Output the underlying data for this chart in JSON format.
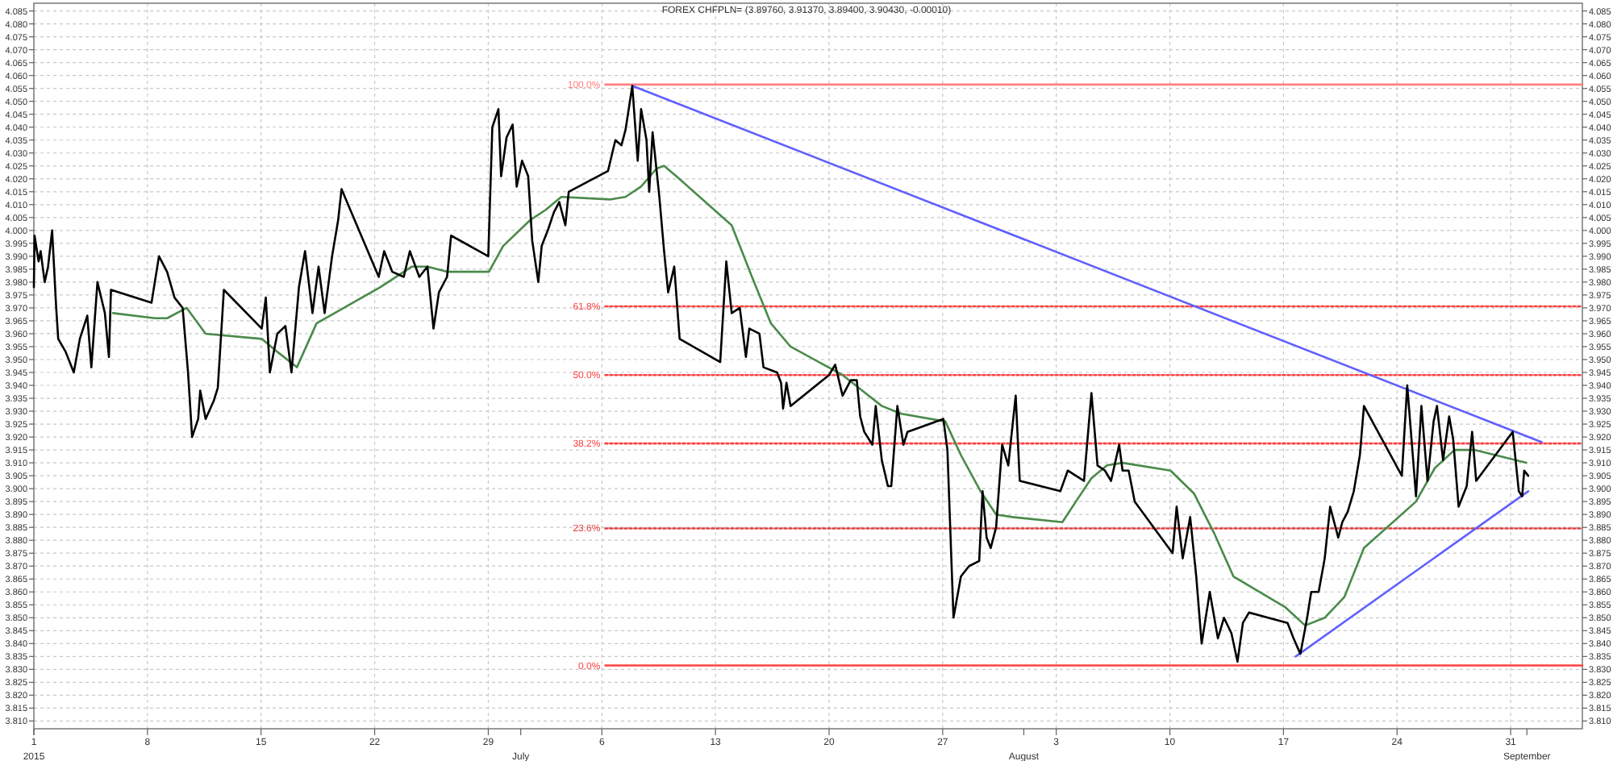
{
  "chart_data": {
    "type": "line",
    "title": "FOREX CHFPLN= (3.89760, 3.91370, 3.89400, 3.90430, -0.00010)",
    "xlim": [
      "2015-06-01",
      "2015-09-04T10:00"
    ],
    "xticks": [
      {
        "value": "2015-06-01",
        "label": "1"
      },
      {
        "value": "2015-06-08",
        "label": "8"
      },
      {
        "value": "2015-06-15",
        "label": "15"
      },
      {
        "value": "2015-06-22",
        "label": "22"
      },
      {
        "value": "2015-06-29",
        "label": "29"
      },
      {
        "value": "2015-07-06",
        "label": "6"
      },
      {
        "value": "2015-07-13",
        "label": "13"
      },
      {
        "value": "2015-07-20",
        "label": "20"
      },
      {
        "value": "2015-07-27",
        "label": "27"
      },
      {
        "value": "2015-08-03",
        "label": "3"
      },
      {
        "value": "2015-08-10",
        "label": "10"
      },
      {
        "value": "2015-08-17",
        "label": "17"
      },
      {
        "value": "2015-08-24",
        "label": "24"
      },
      {
        "value": "2015-08-31",
        "label": "31"
      }
    ],
    "x2lim": [
      "2015-06-01",
      "2015-09-04T10:00"
    ],
    "x2ticks": [
      {
        "value": "2015-06-01",
        "label": "2015"
      },
      {
        "value": "2015-07-01",
        "label": "July"
      },
      {
        "value": "2015-08-01",
        "label": "August"
      },
      {
        "value": "2015-09-01",
        "label": "September"
      }
    ],
    "ylim": [
      3.807,
      4.088
    ],
    "yticks": [
      {
        "value": 3.81,
        "label": "3.810"
      },
      3.815,
      {
        "value": 3.82,
        "label": "3.820"
      },
      3.825,
      {
        "value": 3.83,
        "label": "3.830"
      },
      3.835,
      {
        "value": 3.84,
        "label": "3.840"
      },
      3.845,
      {
        "value": 3.85,
        "label": "3.850"
      },
      3.855,
      {
        "value": 3.86,
        "label": "3.860"
      },
      3.865,
      {
        "value": 3.87,
        "label": "3.870"
      },
      3.875,
      {
        "value": 3.88,
        "label": "3.880"
      },
      3.885,
      {
        "value": 3.89,
        "label": "3.890"
      },
      3.895,
      {
        "value": 3.9,
        "label": "3.900"
      },
      3.905,
      {
        "value": 3.91,
        "label": "3.910"
      },
      3.915,
      {
        "value": 3.92,
        "label": "3.920"
      },
      3.925,
      {
        "value": 3.93,
        "label": "3.930"
      },
      3.935,
      {
        "value": 3.94,
        "label": "3.940"
      },
      3.945,
      {
        "value": 3.95,
        "label": "3.950"
      },
      3.955,
      {
        "value": 3.96,
        "label": "3.960"
      },
      3.965,
      {
        "value": 3.97,
        "label": "3.970"
      },
      3.975,
      {
        "value": 3.98,
        "label": "3.980"
      },
      3.985,
      {
        "value": 3.99,
        "label": "3.990"
      },
      3.995,
      {
        "value": 4,
        "label": "4.000"
      },
      4.005,
      {
        "value": 4.01,
        "label": "4.010"
      },
      4.015,
      {
        "value": 4.02,
        "label": "4.020"
      },
      4.025,
      {
        "value": 4.03,
        "label": "4.030"
      },
      4.035,
      {
        "value": 4.04,
        "label": "4.040"
      },
      4.045,
      {
        "value": 4.05,
        "label": "4.050"
      },
      4.055,
      {
        "value": 4.06,
        "label": "4.060"
      },
      4.065,
      {
        "value": 4.07,
        "label": "4.070"
      },
      4.075,
      {
        "value": 4.08,
        "label": "4.080"
      },
      4.085
    ],
    "y2lim": [
      3.807,
      4.088
    ],
    "y2ticks": [
      {
        "value": 3.81,
        "label": "3.810"
      },
      3.815,
      {
        "value": 3.82,
        "label": "3.820"
      },
      3.825,
      {
        "value": 3.83,
        "label": "3.830"
      },
      3.835,
      {
        "value": 3.84,
        "label": "3.840"
      },
      3.845,
      {
        "value": 3.85,
        "label": "3.850"
      },
      3.855,
      {
        "value": 3.86,
        "label": "3.860"
      },
      3.865,
      {
        "value": 3.87,
        "label": "3.870"
      },
      3.875,
      {
        "value": 3.88,
        "label": "3.880"
      },
      3.885,
      {
        "value": 3.89,
        "label": "3.890"
      },
      3.895,
      {
        "value": 3.9,
        "label": "3.900"
      },
      3.905,
      {
        "value": 3.91,
        "label": "3.910"
      },
      3.915,
      {
        "value": 3.92,
        "label": "3.920"
      },
      3.925,
      {
        "value": 3.93,
        "label": "3.930"
      },
      3.935,
      {
        "value": 3.94,
        "label": "3.940"
      },
      3.945,
      {
        "value": 3.95,
        "label": "3.950"
      },
      3.955,
      {
        "value": 3.96,
        "label": "3.960"
      },
      3.965,
      {
        "value": 3.97,
        "label": "3.970"
      },
      3.975,
      {
        "value": 3.98,
        "label": "3.980"
      },
      3.985,
      {
        "value": 3.99,
        "label": "3.990"
      },
      3.995,
      {
        "value": 4,
        "label": "4.000"
      },
      4.005,
      {
        "value": 4.01,
        "label": "4.010"
      },
      4.015,
      {
        "value": 4.02,
        "label": "4.020"
      },
      4.025,
      {
        "value": 4.03,
        "label": "4.030"
      },
      4.035,
      {
        "value": 4.04,
        "label": "4.040"
      },
      4.045,
      {
        "value": 4.05,
        "label": "4.050"
      },
      4.055,
      {
        "value": 4.06,
        "label": "4.060"
      },
      4.065,
      {
        "value": 4.07,
        "label": "4.070"
      },
      4.075,
      {
        "value": 4.08,
        "label": "4.080"
      },
      4.085
    ],
    "grid": true,
    "series": [
      {
        "color": "#ff8080",
        "x": [
          "2015-07-06T05:00",
          "2015-09-04T10:00"
        ],
        "values": [
          4.0565,
          4.0565
        ],
        "name": "100.0%",
        "line_style": "solid"
      },
      {
        "color": "#ff4040",
        "x": [
          "2015-07-06T05:00",
          "2015-09-04T10:00"
        ],
        "values": [
          3.9706,
          3.9706
        ],
        "name": "61.8%",
        "line_style": "dotted"
      },
      {
        "color": "#ff4040",
        "x": [
          "2015-07-06T05:00",
          "2015-09-04T10:00"
        ],
        "values": [
          3.944,
          3.944
        ],
        "name": "50.0%",
        "line_style": "dotted"
      },
      {
        "color": "#ff4040",
        "x": [
          "2015-07-06T05:00",
          "2015-09-04T10:00"
        ],
        "values": [
          3.9175,
          3.9175
        ],
        "name": "38.2%",
        "line_style": "dotted"
      },
      {
        "color": "#e04040",
        "x": [
          "2015-07-06T05:00",
          "2015-09-04T10:00"
        ],
        "values": [
          3.8846,
          3.8846
        ],
        "name": "23.6%",
        "line_style": "dotted"
      },
      {
        "color": "#ff4040",
        "x": [
          "2015-07-06T05:00",
          "2015-09-04T10:00"
        ],
        "values": [
          3.8315,
          3.8315
        ],
        "name": "0.0%",
        "line_style": "solid"
      },
      {
        "color": "#6060ff",
        "x": [
          "2015-07-07T21:00",
          "2015-09-01T22:00"
        ],
        "values": [
          4.056,
          3.918
        ]
      },
      {
        "color": "#6060ff",
        "x": [
          "2015-08-17T18:00",
          "2015-09-01T02:00"
        ],
        "values": [
          3.835,
          3.899
        ]
      },
      {
        "color": "#4a8a4a",
        "x": [
          "2015-06-05T21:00",
          "2015-06-08T11:00",
          "2015-06-09T05:00",
          "2015-06-10T10:00",
          "2015-06-11T14:00",
          "2015-06-15T01:00",
          "2015-06-16T00:00",
          "2015-06-17T05:00",
          "2015-06-18T10:00",
          "2015-06-22T08:00",
          "2015-06-24T07:00",
          "2015-06-25T06:00",
          "2015-06-26T11:00",
          "2015-06-29T01:00",
          "2015-06-29T22:00",
          "2015-07-01T14:00",
          "2015-07-02T13:00",
          "2015-07-03T12:00",
          "2015-07-06T12:00",
          "2015-07-07T11:00",
          "2015-07-08T10:00",
          "2015-07-09T09:00",
          "2015-07-09T20:00",
          "2015-07-10T14:00",
          "2015-07-14T00:00",
          "2015-07-15T06:00",
          "2015-07-16T10:00",
          "2015-07-17T15:00",
          "2015-07-20T20:00",
          "2015-07-22T01:00",
          "2015-07-23T06:00",
          "2015-07-24T11:00",
          "2015-07-27T04:00",
          "2015-07-28T03:00",
          "2015-07-29T08:00",
          "2015-07-30T07:00",
          "2015-07-31T07:00",
          "2015-08-03T09:00",
          "2015-08-04T05:00",
          "2015-08-05T04:00",
          "2015-08-06T03:00",
          "2015-08-07T02:00",
          "2015-08-10T01:00",
          "2015-08-11T12:00",
          "2015-08-12T17:00",
          "2015-08-13T22:00",
          "2015-08-17T03:00",
          "2015-08-18T08:00",
          "2015-08-19T13:00",
          "2015-08-20T18:00",
          "2015-08-21T23:00",
          "2015-08-25T04:00",
          "2015-08-26T08:00",
          "2015-08-27T13:00",
          "2015-08-28T18:00",
          "2015-08-31T23:00"
        ],
        "values": [
          3.968,
          3.966,
          3.966,
          3.97,
          3.96,
          3.958,
          3.953,
          3.947,
          3.964,
          3.978,
          3.986,
          3.986,
          3.984,
          3.984,
          3.994,
          4.004,
          4.008,
          4.013,
          4.012,
          4.013,
          4.017,
          4.024,
          4.025,
          4.021,
          4.002,
          3.982,
          3.964,
          3.955,
          3.944,
          3.938,
          3.932,
          3.929,
          3.926,
          3.913,
          3.899,
          3.89,
          3.889,
          3.887,
          3.895,
          3.904,
          3.909,
          3.91,
          3.907,
          3.898,
          3.883,
          3.866,
          3.854,
          3.847,
          3.85,
          3.858,
          3.877,
          3.895,
          3.908,
          3.915,
          3.915,
          3.91
        ]
      },
      {
        "color": "#000000",
        "x": [
          "2015-06-01T00:00",
          "2015-06-01T01:00",
          "2015-06-01T07:00",
          "2015-06-01T10:00",
          "2015-06-01T16:00",
          "2015-06-01T21:00",
          "2015-06-02T03:00",
          "2015-06-02T09:00",
          "2015-06-02T12:00",
          "2015-06-02T23:00",
          "2015-06-03T11:00",
          "2015-06-03T20:00",
          "2015-06-04T07:00",
          "2015-06-04T13:00",
          "2015-06-04T22:00",
          "2015-06-05T09:00",
          "2015-06-05T15:00",
          "2015-06-05T18:00",
          "2015-06-08T06:00",
          "2015-06-08T17:00",
          "2015-06-09T05:00",
          "2015-06-09T16:00",
          "2015-06-10T04:00",
          "2015-06-10T12:00",
          "2015-06-10T18:00",
          "2015-06-11T03:00",
          "2015-06-11T06:00",
          "2015-06-11T14:00",
          "2015-06-12T02:00",
          "2015-06-12T08:00",
          "2015-06-12T17:00",
          "2015-06-15T01:00",
          "2015-06-15T07:00",
          "2015-06-15T13:00",
          "2015-06-16T00:00",
          "2015-06-16T12:00",
          "2015-06-16T21:00",
          "2015-06-17T08:00",
          "2015-06-17T17:00",
          "2015-06-18T04:00",
          "2015-06-18T13:00",
          "2015-06-18T22:00",
          "2015-06-19T09:00",
          "2015-06-19T18:00",
          "2015-06-19T23:00",
          "2015-06-22T06:00",
          "2015-06-22T14:00",
          "2015-06-23T02:00",
          "2015-06-23T19:00",
          "2015-06-24T04:00",
          "2015-06-24T18:00",
          "2015-06-25T06:00",
          "2015-06-25T15:00",
          "2015-06-25T23:00",
          "2015-06-26T11:00",
          "2015-06-26T17:00",
          "2015-06-29T00:00",
          "2015-06-29T06:00",
          "2015-06-29T15:00",
          "2015-06-29T19:00",
          "2015-06-30T03:00",
          "2015-06-30T12:00",
          "2015-06-30T18:00",
          "2015-07-01T02:00",
          "2015-07-01T11:00",
          "2015-07-01T17:00",
          "2015-07-02T02:00",
          "2015-07-02T07:00",
          "2015-07-02T16:00",
          "2015-07-03T01:00",
          "2015-07-03T09:00",
          "2015-07-03T18:00",
          "2015-07-03T23:00",
          "2015-07-06T09:00",
          "2015-07-06T20:00",
          "2015-07-07T05:00",
          "2015-07-07T11:00",
          "2015-07-07T21:00",
          "2015-07-08T05:00",
          "2015-07-08T10:00",
          "2015-07-08T18:00",
          "2015-07-08T22:00",
          "2015-07-09T03:00",
          "2015-07-09T13:00",
          "2015-07-09T20:00",
          "2015-07-10T02:00",
          "2015-07-10T11:00",
          "2015-07-10T19:00",
          "2015-07-13T07:00",
          "2015-07-13T16:00",
          "2015-07-14T00:00",
          "2015-07-14T12:00",
          "2015-07-14T21:00",
          "2015-07-15T02:00",
          "2015-07-15T17:00",
          "2015-07-15T23:00",
          "2015-07-16T19:00",
          "2015-07-17T01:00",
          "2015-07-17T04:00",
          "2015-07-17T09:00",
          "2015-07-17T15:00",
          "2015-07-20T00:00",
          "2015-07-20T09:00",
          "2015-07-20T20:00",
          "2015-07-21T08:00",
          "2015-07-21T17:00",
          "2015-07-21T22:00",
          "2015-07-22T04:00",
          "2015-07-22T16:00",
          "2015-07-22T21:00",
          "2015-07-23T06:00",
          "2015-07-23T15:00",
          "2015-07-23T20:00",
          "2015-07-24T05:00",
          "2015-07-24T14:00",
          "2015-07-24T20:00",
          "2015-07-27T01:00",
          "2015-07-27T07:00",
          "2015-07-27T16:00",
          "2015-07-28T03:00",
          "2015-07-28T15:00",
          "2015-07-29T06:00",
          "2015-07-29T11:00",
          "2015-07-29T17:00",
          "2015-07-29T23:00",
          "2015-07-30T07:00",
          "2015-07-30T16:00",
          "2015-07-31T01:00",
          "2015-07-31T12:00",
          "2015-07-31T18:00",
          "2015-08-03T06:00",
          "2015-08-03T17:00",
          "2015-08-04T05:00",
          "2015-08-04T17:00",
          "2015-08-05T04:00",
          "2015-08-05T13:00",
          "2015-08-06T00:00",
          "2015-08-06T09:00",
          "2015-08-06T21:00",
          "2015-08-07T02:00",
          "2015-08-07T11:00",
          "2015-08-07T20:00",
          "2015-08-10T04:00",
          "2015-08-10T10:00",
          "2015-08-10T19:00",
          "2015-08-11T06:00",
          "2015-08-11T15:00",
          "2015-08-11T23:00",
          "2015-08-12T11:00",
          "2015-08-12T23:00",
          "2015-08-13T08:00",
          "2015-08-13T19:00",
          "2015-08-14T04:00",
          "2015-08-14T12:00",
          "2015-08-14T21:00",
          "2015-08-17T06:00",
          "2015-08-17T15:00",
          "2015-08-18T01:00",
          "2015-08-18T11:00",
          "2015-08-18T17:00",
          "2015-08-19T04:00",
          "2015-08-19T13:00",
          "2015-08-19T21:00",
          "2015-08-20T09:00",
          "2015-08-20T15:00",
          "2015-08-20T23:00",
          "2015-08-21T08:00",
          "2015-08-21T17:00",
          "2015-08-21T23:00",
          "2015-08-24T07:00",
          "2015-08-24T15:00",
          "2015-08-24T22:00",
          "2015-08-25T04:00",
          "2015-08-25T12:00",
          "2015-08-25T21:00",
          "2015-08-26T06:00",
          "2015-08-26T11:00",
          "2015-08-26T20:00",
          "2015-08-27T05:00",
          "2015-08-27T11:00",
          "2015-08-27T19:00",
          "2015-08-28T07:00",
          "2015-08-28T15:00",
          "2015-08-28T21:00",
          "2015-08-31T03:00",
          "2015-08-31T12:00",
          "2015-08-31T17:00",
          "2015-08-31T20:00",
          "2015-09-01T02:00"
        ],
        "values": [
          3.978,
          3.998,
          3.988,
          3.992,
          3.98,
          3.986,
          4.0,
          3.97,
          3.958,
          3.953,
          3.945,
          3.958,
          3.967,
          3.947,
          3.98,
          3.968,
          3.951,
          3.977,
          3.972,
          3.99,
          3.984,
          3.974,
          3.97,
          3.945,
          3.92,
          3.927,
          3.938,
          3.927,
          3.934,
          3.939,
          3.977,
          3.962,
          3.974,
          3.945,
          3.96,
          3.963,
          3.945,
          3.978,
          3.992,
          3.968,
          3.986,
          3.968,
          3.99,
          4.004,
          4.016,
          3.982,
          3.992,
          3.984,
          3.982,
          3.992,
          3.982,
          3.986,
          3.962,
          3.976,
          3.982,
          3.998,
          3.99,
          4.04,
          4.047,
          4.021,
          4.036,
          4.041,
          4.017,
          4.027,
          4.021,
          3.996,
          3.98,
          3.994,
          4.0,
          4.007,
          4.011,
          4.002,
          4.015,
          4.023,
          4.035,
          4.033,
          4.039,
          4.056,
          4.027,
          4.047,
          4.035,
          4.015,
          4.038,
          4.013,
          3.992,
          3.976,
          3.986,
          3.958,
          3.949,
          3.988,
          3.968,
          3.97,
          3.951,
          3.962,
          3.96,
          3.947,
          3.945,
          3.941,
          3.931,
          3.941,
          3.932,
          3.944,
          3.948,
          3.936,
          3.942,
          3.942,
          3.928,
          3.922,
          3.917,
          3.932,
          3.911,
          3.901,
          3.901,
          3.932,
          3.917,
          3.922,
          3.927,
          3.915,
          3.85,
          3.866,
          3.87,
          3.872,
          3.899,
          3.881,
          3.877,
          3.885,
          3.917,
          3.909,
          3.936,
          3.903,
          3.899,
          3.907,
          3.905,
          3.903,
          3.937,
          3.909,
          3.907,
          3.903,
          3.917,
          3.907,
          3.907,
          3.895,
          3.875,
          3.893,
          3.873,
          3.889,
          3.866,
          3.84,
          3.86,
          3.842,
          3.85,
          3.844,
          3.833,
          3.848,
          3.852,
          3.848,
          3.842,
          3.836,
          3.85,
          3.86,
          3.86,
          3.873,
          3.893,
          3.881,
          3.887,
          3.891,
          3.899,
          3.913,
          3.932,
          3.905,
          3.94,
          3.917,
          3.897,
          3.932,
          3.903,
          3.926,
          3.932,
          3.911,
          3.928,
          3.919,
          3.893,
          3.901,
          3.922,
          3.903,
          3.922,
          3.899,
          3.897,
          3.907,
          3.905
        ]
      }
    ]
  }
}
